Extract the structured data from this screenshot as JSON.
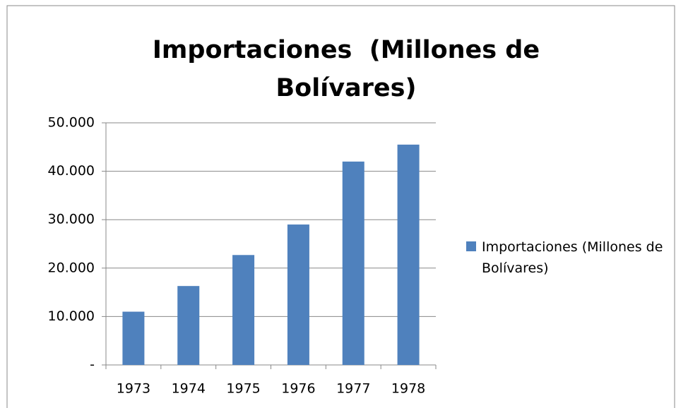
{
  "chart_data": {
    "type": "bar",
    "title": "Importaciones  (Millones de Bolívares)",
    "categories": [
      "1973",
      "1974",
      "1975",
      "1976",
      "1977",
      "1978"
    ],
    "series": [
      {
        "name": "Importaciones (Millones de Bolívares)",
        "color": "#4f81bd",
        "values": [
          11000,
          16300,
          22700,
          29000,
          42000,
          45500
        ]
      }
    ],
    "ylim": [
      0,
      50000
    ],
    "yticks": [
      {
        "value": 0,
        "label": "-"
      },
      {
        "value": 10000,
        "label": "10.000"
      },
      {
        "value": 20000,
        "label": "20.000"
      },
      {
        "value": 30000,
        "label": "30.000"
      },
      {
        "value": 40000,
        "label": "40.000"
      },
      {
        "value": 50000,
        "label": "50.000"
      }
    ],
    "grid": true,
    "legend": "right"
  }
}
